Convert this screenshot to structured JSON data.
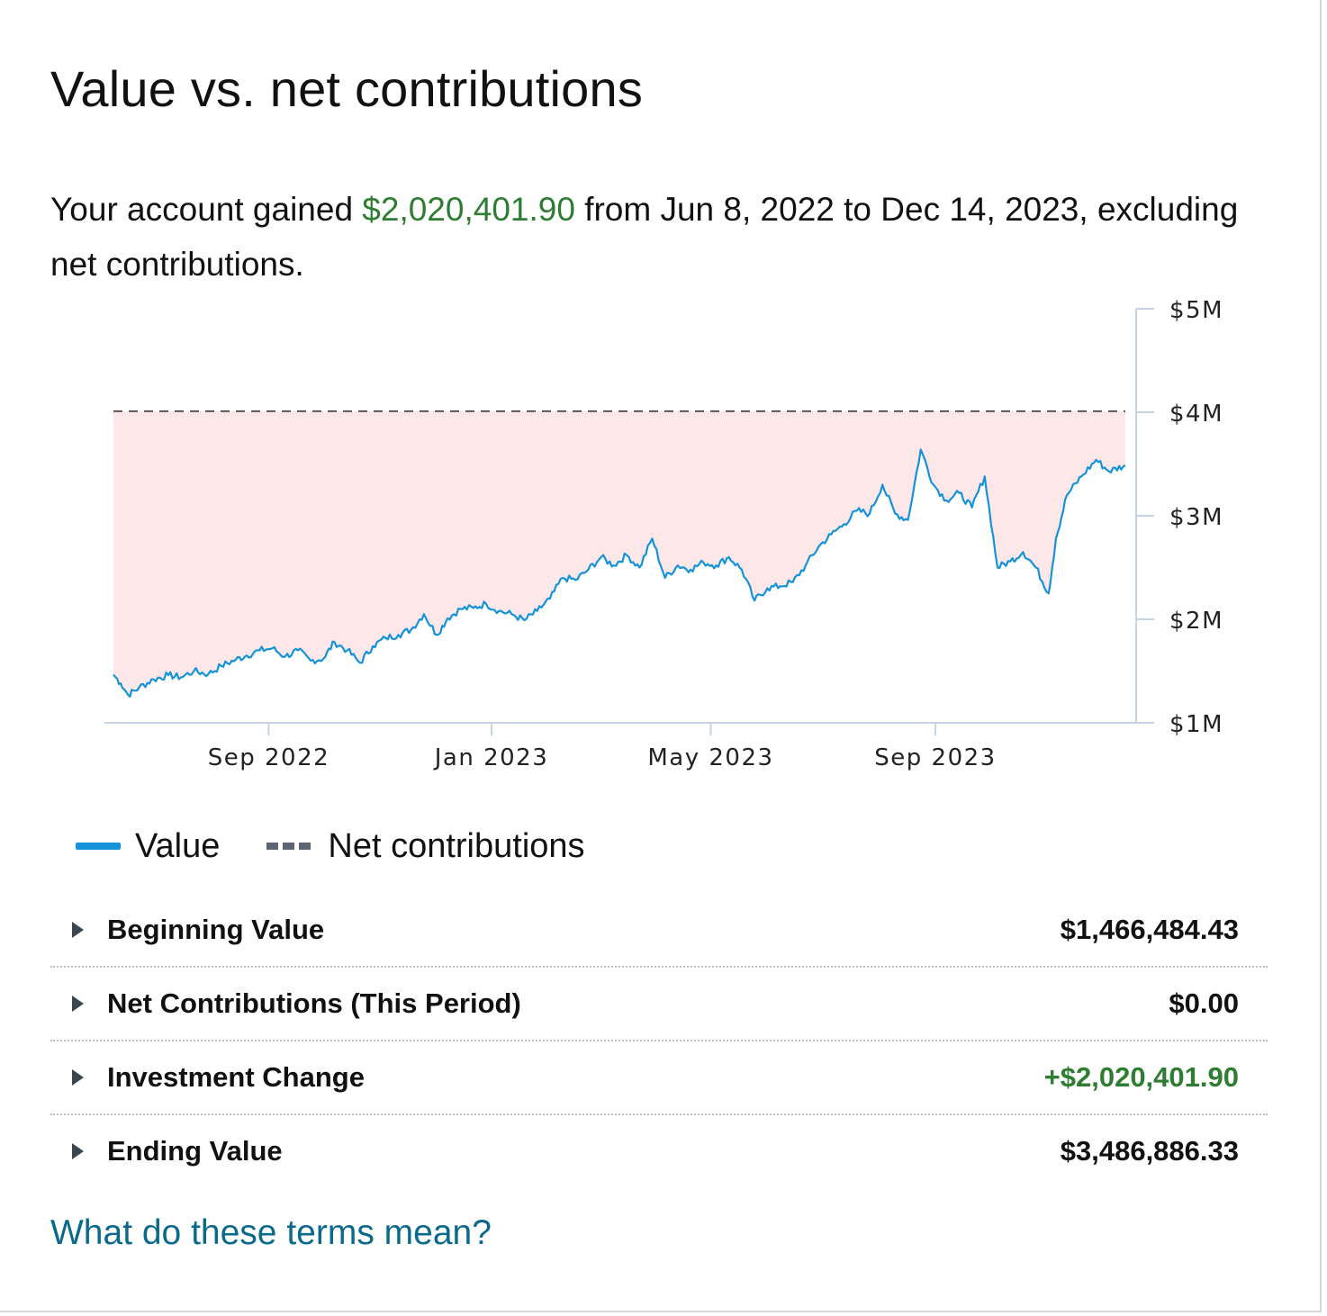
{
  "title": "Value vs. net contributions",
  "summary": {
    "prefix": "Your account gained ",
    "gain": "$2,020,401.90",
    "suffix": " from Jun 8, 2022 to Dec 14, 2023, excluding net contributions."
  },
  "legend": {
    "value_label": "Value",
    "contrib_label": "Net contributions"
  },
  "rows": [
    {
      "label": "Beginning Value",
      "value": "$1,466,484.43",
      "positive": false
    },
    {
      "label": "Net Contributions (This Period)",
      "value": "$0.00",
      "positive": false
    },
    {
      "label": "Investment Change",
      "value": "+$2,020,401.90",
      "positive": true
    },
    {
      "label": "Ending Value",
      "value": "$3,486,886.33",
      "positive": false
    }
  ],
  "link_label": "What do these terms mean?",
  "colors": {
    "value_line": "#1593d8",
    "contrib_line": "#3a3a3a",
    "fill": "#fde7e8",
    "gain_text": "#2e7d32",
    "link": "#0b6a8c"
  },
  "chart_data": {
    "type": "area",
    "title": "Value vs. net contributions",
    "xlabel": "",
    "ylabel": "",
    "x_range": [
      "2022-06-08",
      "2023-12-14"
    ],
    "ylim": [
      1000000,
      5000000
    ],
    "y_ticks": [
      1000000,
      2000000,
      3000000,
      4000000,
      5000000
    ],
    "y_tick_labels": [
      "$1M",
      "$2M",
      "$3M",
      "$4M",
      "$5M"
    ],
    "x_ticks": [
      "2022-09-01",
      "2023-01-01",
      "2023-05-01",
      "2023-09-01"
    ],
    "x_tick_labels": [
      "Sep 2022",
      "Jan 2023",
      "May 2023",
      "Sep 2023"
    ],
    "legend": [
      "Value",
      "Net contributions"
    ],
    "series": [
      {
        "name": "Value",
        "style": "solid",
        "points": [
          [
            "2022-06-08",
            1466484
          ],
          [
            "2022-06-12",
            1380000
          ],
          [
            "2022-06-16",
            1270000
          ],
          [
            "2022-06-22",
            1340000
          ],
          [
            "2022-06-30",
            1420000
          ],
          [
            "2022-07-08",
            1460000
          ],
          [
            "2022-07-15",
            1440000
          ],
          [
            "2022-07-22",
            1500000
          ],
          [
            "2022-07-30",
            1470000
          ],
          [
            "2022-08-06",
            1550000
          ],
          [
            "2022-08-14",
            1610000
          ],
          [
            "2022-08-20",
            1650000
          ],
          [
            "2022-08-27",
            1700000
          ],
          [
            "2022-09-03",
            1720000
          ],
          [
            "2022-09-10",
            1640000
          ],
          [
            "2022-09-17",
            1700000
          ],
          [
            "2022-09-24",
            1600000
          ],
          [
            "2022-10-01",
            1620000
          ],
          [
            "2022-10-07",
            1780000
          ],
          [
            "2022-10-14",
            1700000
          ],
          [
            "2022-10-21",
            1580000
          ],
          [
            "2022-10-28",
            1740000
          ],
          [
            "2022-11-04",
            1820000
          ],
          [
            "2022-11-11",
            1850000
          ],
          [
            "2022-11-18",
            1900000
          ],
          [
            "2022-11-25",
            2050000
          ],
          [
            "2022-12-02",
            1850000
          ],
          [
            "2022-12-08",
            2010000
          ],
          [
            "2022-12-15",
            2100000
          ],
          [
            "2022-12-22",
            2110000
          ],
          [
            "2022-12-29",
            2150000
          ],
          [
            "2023-01-05",
            2080000
          ],
          [
            "2023-01-12",
            2050000
          ],
          [
            "2023-01-19",
            1990000
          ],
          [
            "2023-01-26",
            2080000
          ],
          [
            "2023-02-02",
            2200000
          ],
          [
            "2023-02-09",
            2400000
          ],
          [
            "2023-02-16",
            2380000
          ],
          [
            "2023-02-23",
            2480000
          ],
          [
            "2023-03-02",
            2600000
          ],
          [
            "2023-03-09",
            2520000
          ],
          [
            "2023-03-16",
            2620000
          ],
          [
            "2023-03-23",
            2500000
          ],
          [
            "2023-03-30",
            2780000
          ],
          [
            "2023-04-06",
            2400000
          ],
          [
            "2023-04-13",
            2520000
          ],
          [
            "2023-04-20",
            2480000
          ],
          [
            "2023-04-27",
            2550000
          ],
          [
            "2023-05-04",
            2520000
          ],
          [
            "2023-05-11",
            2600000
          ],
          [
            "2023-05-18",
            2480000
          ],
          [
            "2023-05-25",
            2180000
          ],
          [
            "2023-06-01",
            2300000
          ],
          [
            "2023-06-08",
            2320000
          ],
          [
            "2023-06-15",
            2360000
          ],
          [
            "2023-06-22",
            2520000
          ],
          [
            "2023-06-29",
            2700000
          ],
          [
            "2023-07-06",
            2820000
          ],
          [
            "2023-07-13",
            2920000
          ],
          [
            "2023-07-20",
            3050000
          ],
          [
            "2023-07-27",
            3020000
          ],
          [
            "2023-08-03",
            3300000
          ],
          [
            "2023-08-10",
            3020000
          ],
          [
            "2023-08-17",
            2960000
          ],
          [
            "2023-08-24",
            3640000
          ],
          [
            "2023-08-31",
            3300000
          ],
          [
            "2023-09-07",
            3150000
          ],
          [
            "2023-09-14",
            3220000
          ],
          [
            "2023-09-21",
            3080000
          ],
          [
            "2023-09-28",
            3380000
          ],
          [
            "2023-10-05",
            2500000
          ],
          [
            "2023-10-12",
            2560000
          ],
          [
            "2023-10-19",
            2650000
          ],
          [
            "2023-10-26",
            2500000
          ],
          [
            "2023-11-02",
            2250000
          ],
          [
            "2023-11-06",
            2780000
          ],
          [
            "2023-11-12",
            3200000
          ],
          [
            "2023-11-20",
            3380000
          ],
          [
            "2023-11-28",
            3540000
          ],
          [
            "2023-12-05",
            3430000
          ],
          [
            "2023-12-14",
            3486886
          ]
        ]
      },
      {
        "name": "Net contributions",
        "style": "dashed",
        "points": [
          [
            "2022-06-08",
            4010000
          ],
          [
            "2023-12-14",
            4010000
          ]
        ]
      }
    ]
  }
}
